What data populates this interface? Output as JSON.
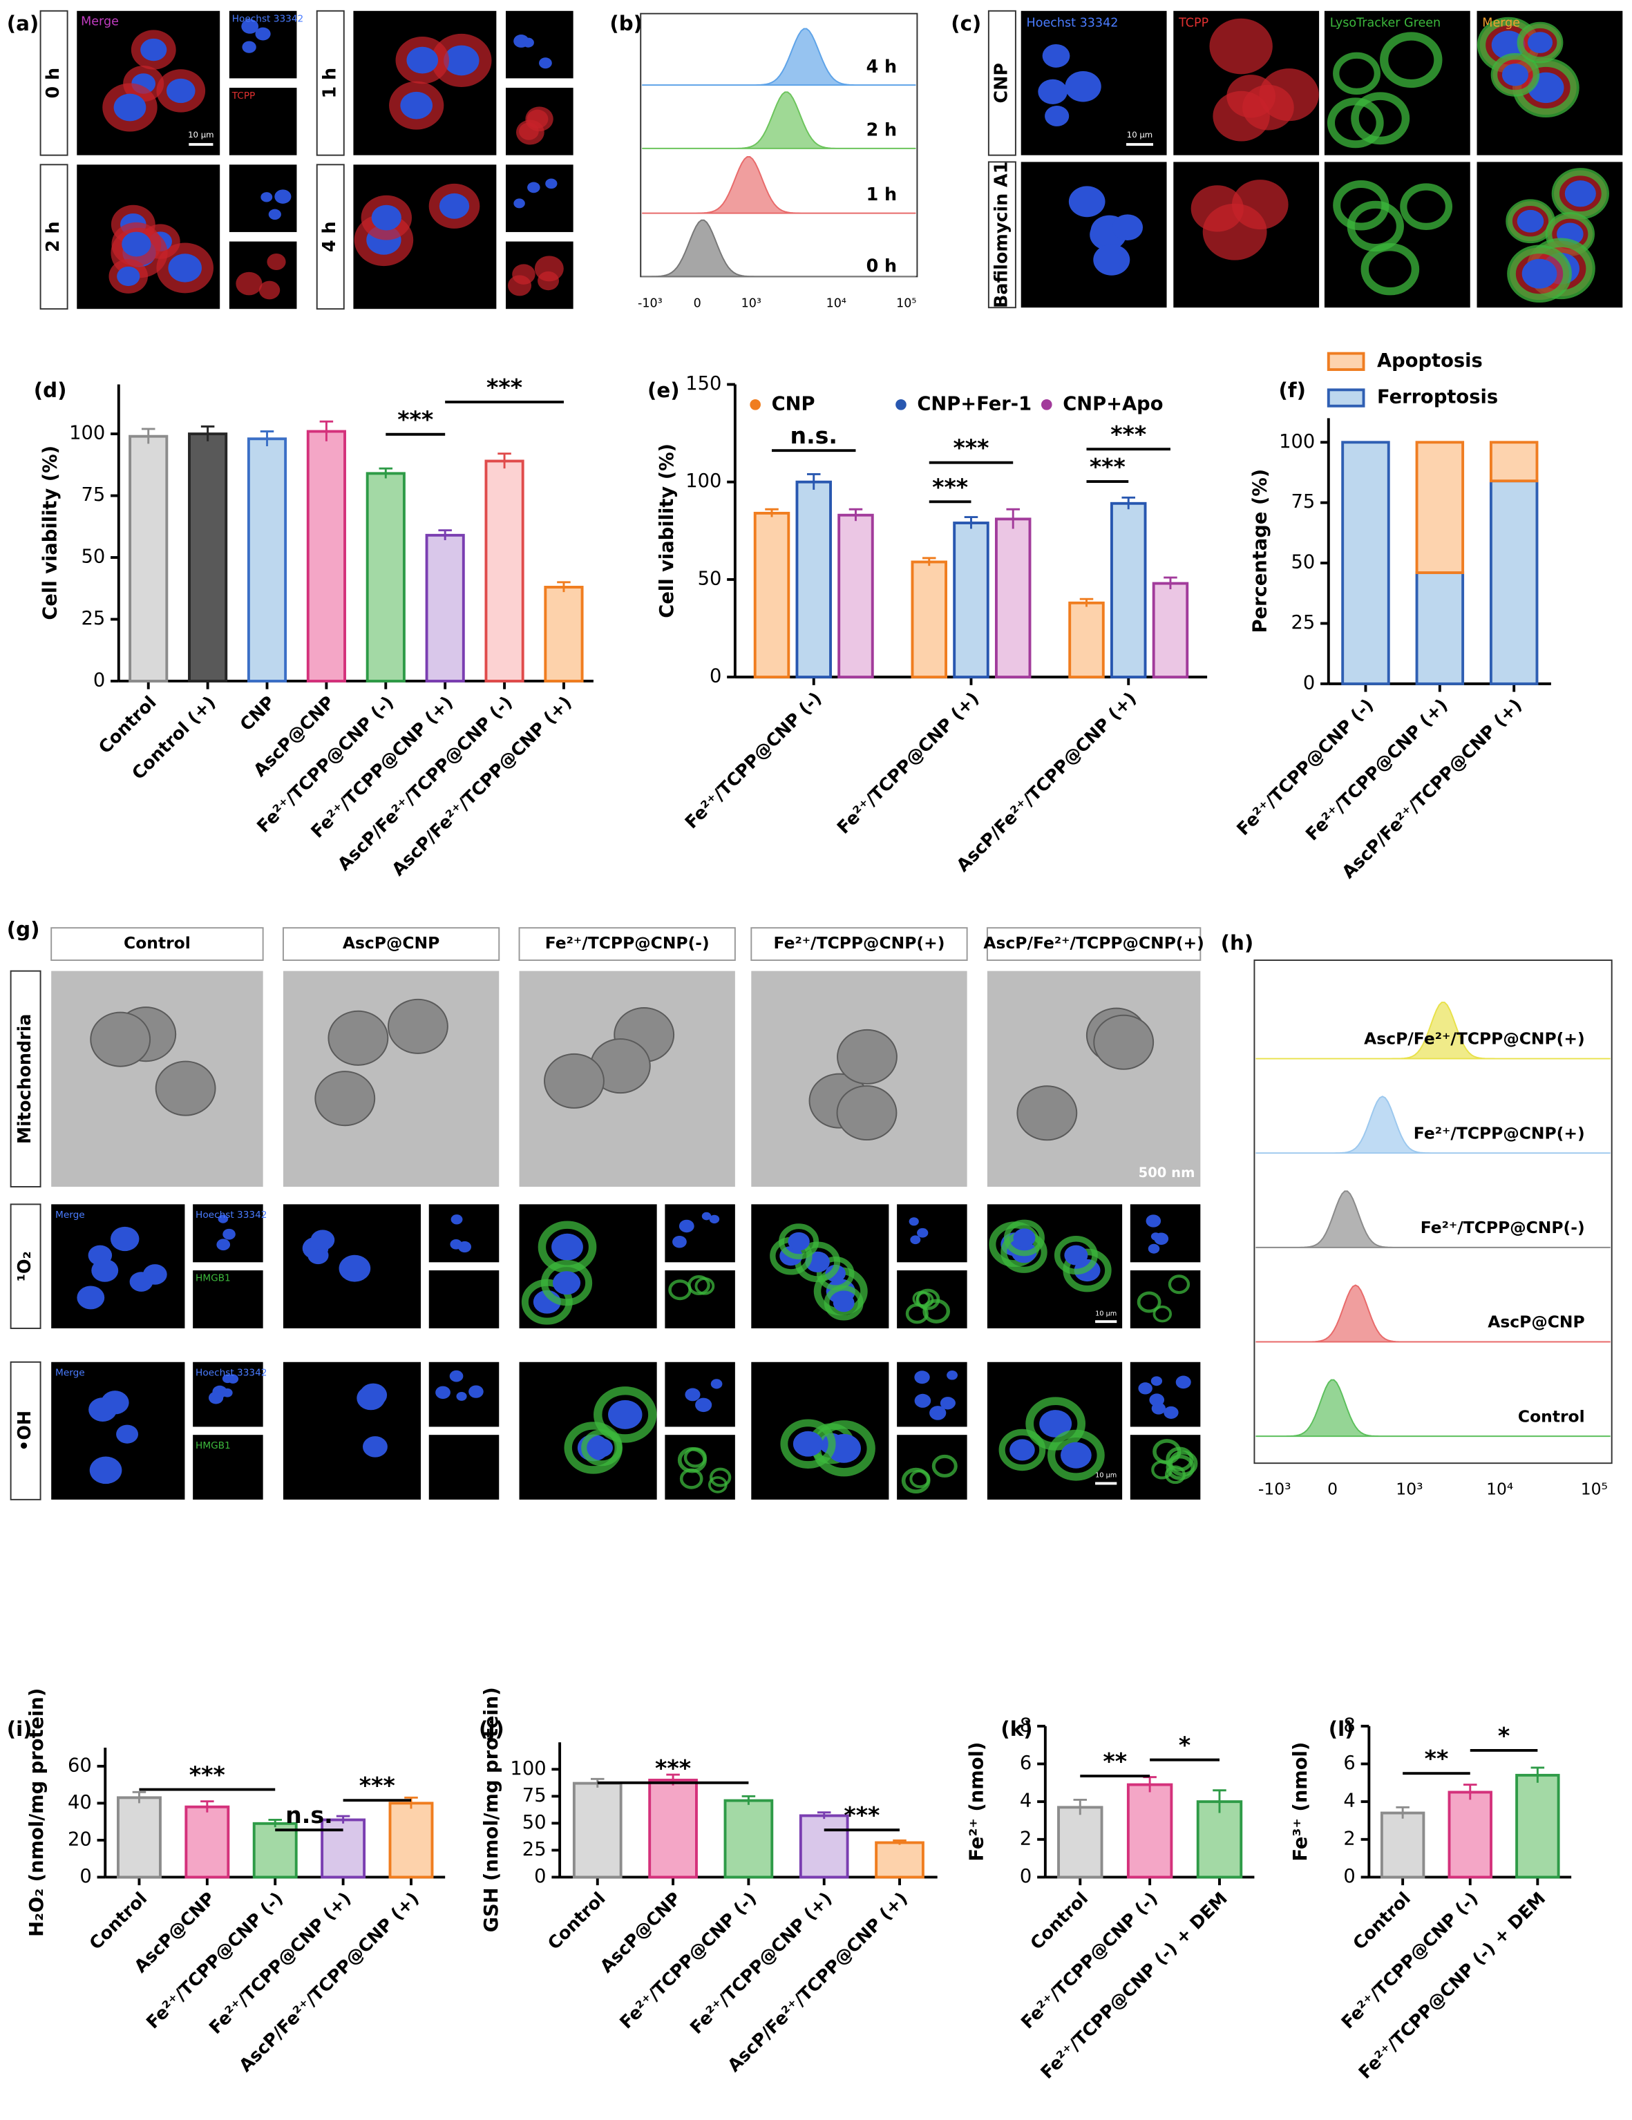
{
  "panel_labels": [
    "(a)",
    "(b)",
    "(c)",
    "(d)",
    "(e)",
    "(f)",
    "(g)",
    "(h)",
    "(i)",
    "(j)",
    "(k)",
    "(l)"
  ],
  "panel_a": {
    "merge": "Merge",
    "hoechst": "Hoechst 33342",
    "tcpp": "TCPP",
    "scale": "10 μm",
    "times": [
      "0 h",
      "1 h",
      "2 h",
      "4 h"
    ]
  },
  "panel_b": {
    "times": [
      "4 h",
      "2 h",
      "1 h",
      "0 h"
    ],
    "xticks": [
      "-10³",
      "0",
      "10³",
      "10⁴",
      "10⁵"
    ]
  },
  "panel_c": {
    "columns": [
      "Hoechst 33342",
      "TCPP",
      "LysoTracker Green",
      "Merge"
    ],
    "rows": [
      "CNP",
      "Bafilomycin A1"
    ],
    "scale": "10 μm"
  },
  "panel_g": {
    "columns": [
      "Control",
      "AscP@CNP",
      "Fe²⁺/TCPP@CNP(-)",
      "Fe²⁺/TCPP@CNP(+)",
      "AscP/Fe²⁺/TCPP@CNP(+)"
    ],
    "rows": [
      "Mitochondria",
      "¹O₂",
      "•OH"
    ],
    "tem_scale": "500 nm",
    "merge": "Merge",
    "hoechst": "Hoechst 33342",
    "hmgb1": "HMGB1",
    "scale": "10 μm"
  },
  "panel_h": {
    "samples": [
      "AscP/Fe²⁺/TCPP@CNP(+)",
      "Fe²⁺/TCPP@CNP(+)",
      "Fe²⁺/TCPP@CNP(-)",
      "AscP@CNP",
      "Control"
    ],
    "xticks": [
      "-10³",
      "0",
      "10³",
      "10⁴",
      "10⁵"
    ]
  },
  "chart_data": [
    {
      "type": "bar",
      "y_label": "Cell viability (%)",
      "categories": [
        "Control",
        "Control (+)",
        "CNP",
        "AscP@CNP",
        "Fe²⁺/TCPP@CNP (-)",
        "Fe²⁺/TCPP@CNP (+)",
        "AscP/Fe²⁺/TCPP@CNP (-)",
        "AscP/Fe²⁺/TCPP@CNP (+)"
      ],
      "values": [
        99,
        100,
        98,
        101,
        84,
        59,
        89,
        38
      ],
      "errors": [
        3,
        3,
        3,
        4,
        2,
        2,
        3,
        2
      ],
      "colors": [
        "#d9d9d9",
        "#595959",
        "#bdd7ee",
        "#f4a6c6",
        "#a3d9a5",
        "#d9c7ea",
        "#fcd2d2",
        "#fdd2ab"
      ],
      "edge_colors": [
        "#8c8c8c",
        "#262626",
        "#3b6fc6",
        "#d4317b",
        "#2e9b47",
        "#7a3eb1",
        "#e04b4b",
        "#f07d1f"
      ],
      "ylim": [
        0,
        120
      ],
      "yticks": [
        0,
        25,
        50,
        75,
        100
      ],
      "annotations": [
        "***",
        "***"
      ]
    },
    {
      "type": "grouped_bar",
      "y_label": "Cell viability (%)",
      "categories": [
        "Fe²⁺/TCPP@CNP (-)",
        "Fe²⁺/TCPP@CNP (+)",
        "AscP/Fe²⁺/TCPP@CNP (+)"
      ],
      "series": [
        {
          "name": "CNP",
          "color": "#fdd2ab",
          "edge_color": "#f07d1f",
          "values": [
            84,
            59,
            38
          ],
          "errors": [
            2,
            2,
            2
          ]
        },
        {
          "name": "CNP+Fer-1",
          "color": "#bdd7ee",
          "edge_color": "#2857b0",
          "values": [
            100,
            79,
            89
          ],
          "errors": [
            4,
            3,
            3
          ]
        },
        {
          "name": "CNP+Apo",
          "color": "#ebc6e4",
          "edge_color": "#a23b9b",
          "values": [
            83,
            81,
            48
          ],
          "errors": [
            3,
            5,
            3
          ]
        }
      ],
      "ylim": [
        0,
        150
      ],
      "yticks": [
        0,
        50,
        100,
        150
      ],
      "annotations": [
        "n.s.",
        "***",
        "***",
        "***",
        "***"
      ]
    },
    {
      "type": "stacked_bar",
      "y_label": "Percentage (%)",
      "categories": [
        "Fe²⁺/TCPP@CNP (-)",
        "Fe²⁺/TCPP@CNP (+)",
        "AscP/Fe²⁺/TCPP@CNP (+)"
      ],
      "series": [
        {
          "name": "Ferroptosis",
          "color": "#bdd7ee",
          "edge_color": "#2f5fb3",
          "values": [
            100,
            46,
            84
          ]
        },
        {
          "name": "Apoptosis",
          "color": "#fdd3ae",
          "edge_color": "#ef7d22",
          "values": [
            0,
            54,
            16
          ]
        }
      ],
      "ylim": [
        0,
        110
      ],
      "yticks": [
        0,
        25,
        50,
        75,
        100
      ]
    },
    {
      "type": "bar",
      "y_label": "H₂O₂ (nmol/mg protein)",
      "categories": [
        "Control",
        "AscP@CNP",
        "Fe²⁺/TCPP@CNP (-)",
        "Fe²⁺/TCPP@CNP (+)",
        "AscP/Fe²⁺/TCPP@CNP (+)"
      ],
      "values": [
        43,
        38,
        29,
        31,
        40
      ],
      "errors": [
        3,
        3,
        2,
        2,
        3
      ],
      "colors": [
        "#d9d9d9",
        "#f4a6c6",
        "#a3d9a5",
        "#d9c7ea",
        "#fdd2ab"
      ],
      "edge_colors": [
        "#8c8c8c",
        "#d4317b",
        "#2e9b47",
        "#7a3eb1",
        "#f07d1f"
      ],
      "ylim": [
        0,
        70
      ],
      "yticks": [
        0,
        20,
        40,
        60
      ],
      "annotations": [
        "***",
        "n.s.",
        "***"
      ]
    },
    {
      "type": "bar",
      "y_label": "GSH (nmol/mg protein)",
      "categories": [
        "Control",
        "AscP@CNP",
        "Fe²⁺/TCPP@CNP (-)",
        "Fe²⁺/TCPP@CNP (+)",
        "AscP/Fe²⁺/TCPP@CNP (+)"
      ],
      "values": [
        87,
        90,
        71,
        57,
        32
      ],
      "errors": [
        4,
        5,
        4,
        3,
        2
      ],
      "colors": [
        "#d9d9d9",
        "#f4a6c6",
        "#a3d9a5",
        "#d9c7ea",
        "#fdd2ab"
      ],
      "edge_colors": [
        "#8c8c8c",
        "#d4317b",
        "#2e9b47",
        "#7a3eb1",
        "#f07d1f"
      ],
      "ylim": [
        0,
        125
      ],
      "yticks": [
        0,
        25,
        50,
        75,
        100
      ],
      "annotations": [
        "***",
        "***"
      ]
    },
    {
      "type": "bar",
      "y_label": "Fe²⁺ (nmol)",
      "categories": [
        "Control",
        "Fe²⁺/TCPP@CNP (-)",
        "Fe²⁺/TCPP@CNP (-) + DEM"
      ],
      "values": [
        3.7,
        4.9,
        4.0
      ],
      "errors": [
        0.4,
        0.4,
        0.6
      ],
      "colors": [
        "#d9d9d9",
        "#f4a6c6",
        "#a3d9a5"
      ],
      "edge_colors": [
        "#8c8c8c",
        "#d4317b",
        "#2e9b47"
      ],
      "ylim": [
        0,
        8
      ],
      "yticks": [
        0,
        2,
        4,
        6,
        8
      ],
      "annotations": [
        "**",
        "*"
      ]
    },
    {
      "type": "bar",
      "y_label": "Fe³⁺ (nmol)",
      "categories": [
        "Control",
        "Fe²⁺/TCPP@CNP (-)",
        "Fe²⁺/TCPP@CNP (-) + DEM"
      ],
      "values": [
        3.4,
        4.5,
        5.4
      ],
      "errors": [
        0.3,
        0.4,
        0.4
      ],
      "colors": [
        "#d9d9d9",
        "#f4a6c6",
        "#a3d9a5"
      ],
      "edge_colors": [
        "#8c8c8c",
        "#d4317b",
        "#2e9b47"
      ],
      "ylim": [
        0,
        8
      ],
      "yticks": [
        0,
        2,
        4,
        6,
        8
      ],
      "annotations": [
        "**",
        "*"
      ]
    }
  ]
}
